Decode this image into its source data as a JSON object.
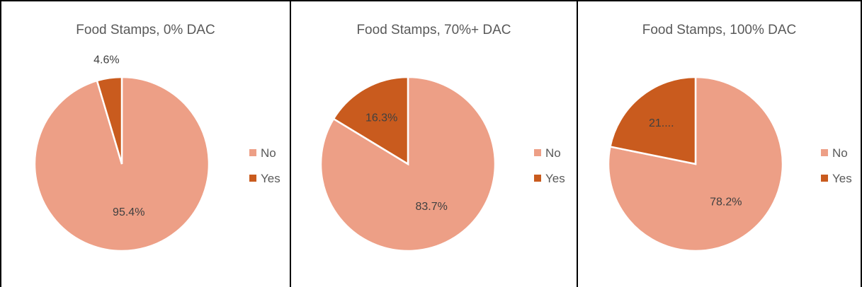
{
  "chart_data": [
    {
      "type": "pie",
      "title": "Food Stamps, 0% DAC",
      "categories": [
        "No",
        "Yes"
      ],
      "values": [
        95.4,
        4.6
      ],
      "data_labels": [
        "95.4%",
        "4.6%"
      ],
      "legend": [
        "No",
        "Yes"
      ],
      "legend_position": "right",
      "colors": [
        "#ED9F86",
        "#C95B1E"
      ]
    },
    {
      "type": "pie",
      "title": "Food Stamps, 70%+ DAC",
      "categories": [
        "No",
        "Yes"
      ],
      "values": [
        83.7,
        16.3
      ],
      "data_labels": [
        "83.7%",
        "16.3%"
      ],
      "legend": [
        "No",
        "Yes"
      ],
      "legend_position": "right",
      "colors": [
        "#ED9F86",
        "#C95B1E"
      ]
    },
    {
      "type": "pie",
      "title": "Food Stamps, 100% DAC",
      "categories": [
        "No",
        "Yes"
      ],
      "values": [
        78.2,
        21.8
      ],
      "data_labels": [
        "78.2%",
        "21...."
      ],
      "legend": [
        "No",
        "Yes"
      ],
      "legend_position": "right",
      "colors": [
        "#ED9F86",
        "#C95B1E"
      ]
    }
  ]
}
